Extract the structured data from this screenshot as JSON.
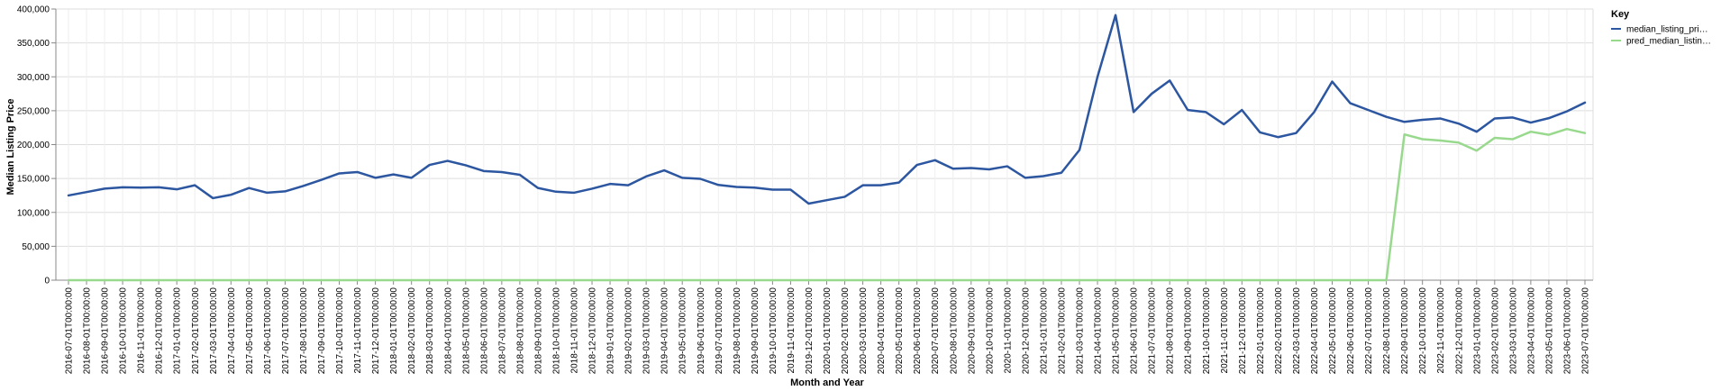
{
  "chart_data": {
    "type": "line",
    "xlabel": "Month and Year",
    "ylabel": "Median Listing Price",
    "ylim": [
      0,
      400000
    ],
    "y_ticks": [
      "0",
      "50,000",
      "100,000",
      "150,000",
      "200,000",
      "250,000",
      "300,000",
      "350,000",
      "400,000"
    ],
    "grid": true,
    "legend": {
      "title": "Key",
      "placement": "top-right",
      "entries": [
        "median_listing_pri…",
        "pred_median_listin…"
      ]
    },
    "categories": [
      "2016-07-01T00:00:00",
      "2016-08-01T00:00:00",
      "2016-09-01T00:00:00",
      "2016-10-01T00:00:00",
      "2016-11-01T00:00:00",
      "2016-12-01T00:00:00",
      "2017-01-01T00:00:00",
      "2017-02-01T00:00:00",
      "2017-03-01T00:00:00",
      "2017-04-01T00:00:00",
      "2017-05-01T00:00:00",
      "2017-06-01T00:00:00",
      "2017-07-01T00:00:00",
      "2017-08-01T00:00:00",
      "2017-09-01T00:00:00",
      "2017-10-01T00:00:00",
      "2017-11-01T00:00:00",
      "2017-12-01T00:00:00",
      "2018-01-01T00:00:00",
      "2018-02-01T00:00:00",
      "2018-03-01T00:00:00",
      "2018-04-01T00:00:00",
      "2018-05-01T00:00:00",
      "2018-06-01T00:00:00",
      "2018-07-01T00:00:00",
      "2018-08-01T00:00:00",
      "2018-09-01T00:00:00",
      "2018-10-01T00:00:00",
      "2018-11-01T00:00:00",
      "2018-12-01T00:00:00",
      "2019-01-01T00:00:00",
      "2019-02-01T00:00:00",
      "2019-03-01T00:00:00",
      "2019-04-01T00:00:00",
      "2019-05-01T00:00:00",
      "2019-06-01T00:00:00",
      "2019-07-01T00:00:00",
      "2019-08-01T00:00:00",
      "2019-09-01T00:00:00",
      "2019-10-01T00:00:00",
      "2019-11-01T00:00:00",
      "2019-12-01T00:00:00",
      "2020-01-01T00:00:00",
      "2020-02-01T00:00:00",
      "2020-03-01T00:00:00",
      "2020-04-01T00:00:00",
      "2020-05-01T00:00:00",
      "2020-06-01T00:00:00",
      "2020-07-01T00:00:00",
      "2020-08-01T00:00:00",
      "2020-09-01T00:00:00",
      "2020-10-01T00:00:00",
      "2020-11-01T00:00:00",
      "2020-12-01T00:00:00",
      "2021-01-01T00:00:00",
      "2021-02-01T00:00:00",
      "2021-03-01T00:00:00",
      "2021-04-01T00:00:00",
      "2021-05-01T00:00:00",
      "2021-06-01T00:00:00",
      "2021-07-01T00:00:00",
      "2021-08-01T00:00:00",
      "2021-09-01T00:00:00",
      "2021-10-01T00:00:00",
      "2021-11-01T00:00:00",
      "2021-12-01T00:00:00",
      "2022-01-01T00:00:00",
      "2022-02-01T00:00:00",
      "2022-03-01T00:00:00",
      "2022-04-01T00:00:00",
      "2022-05-01T00:00:00",
      "2022-06-01T00:00:00",
      "2022-07-01T00:00:00",
      "2022-08-01T00:00:00",
      "2022-09-01T00:00:00",
      "2022-10-01T00:00:00",
      "2022-11-01T00:00:00",
      "2022-12-01T00:00:00",
      "2023-01-01T00:00:00",
      "2023-02-01T00:00:00",
      "2023-03-01T00:00:00",
      "2023-04-01T00:00:00",
      "2023-05-01T00:00:00",
      "2023-06-01T00:00:00",
      "2023-07-01T00:00:00"
    ],
    "series": [
      {
        "name": "median_listing_pri…",
        "color": "#2c56a0",
        "values": [
          125000,
          130000,
          135000,
          137000,
          136500,
          137000,
          134000,
          140000,
          121000,
          126000,
          136000,
          129000,
          131000,
          139000,
          148000,
          157500,
          159500,
          151000,
          156000,
          151000,
          170000,
          176000,
          169500,
          161000,
          159500,
          155500,
          136000,
          130500,
          129000,
          135000,
          142000,
          140000,
          153000,
          162000,
          151000,
          149500,
          140500,
          137500,
          136500,
          133500,
          133500,
          113000,
          118000,
          123000,
          140000,
          140000,
          144000,
          170000,
          177000,
          164500,
          165500,
          163500,
          168000,
          151000,
          153500,
          158500,
          192000,
          300000,
          391000,
          248000,
          275000,
          294500,
          251000,
          248000,
          230000,
          251000,
          218000,
          211000,
          217000,
          248000,
          293000,
          261000,
          251000,
          241000,
          233500,
          236500,
          238500,
          231000,
          219000,
          238500,
          240000,
          232500,
          239000,
          249000,
          262000
        ]
      },
      {
        "name": "pred_median_listin…",
        "color": "#98d98e",
        "values": [
          0,
          0,
          0,
          0,
          0,
          0,
          0,
          0,
          0,
          0,
          0,
          0,
          0,
          0,
          0,
          0,
          0,
          0,
          0,
          0,
          0,
          0,
          0,
          0,
          0,
          0,
          0,
          0,
          0,
          0,
          0,
          0,
          0,
          0,
          0,
          0,
          0,
          0,
          0,
          0,
          0,
          0,
          0,
          0,
          0,
          0,
          0,
          0,
          0,
          0,
          0,
          0,
          0,
          0,
          0,
          0,
          0,
          0,
          0,
          0,
          0,
          0,
          0,
          0,
          0,
          0,
          0,
          0,
          0,
          0,
          0,
          0,
          0,
          0,
          215000,
          208000,
          206000,
          203000,
          191000,
          210000,
          208000,
          219000,
          214500,
          223000,
          217000
        ]
      }
    ]
  }
}
